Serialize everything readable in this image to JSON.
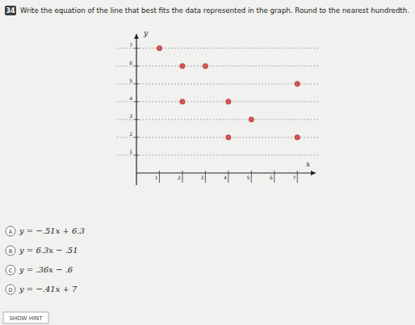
{
  "question_number": "34",
  "question": "Write the equation of the line that best fits the data represented in the graph. Round to the nearest hundredth.",
  "chart_data": {
    "type": "scatter",
    "x_label": "x",
    "y_label": "y",
    "x": [
      1,
      2,
      3,
      7,
      2,
      4,
      5,
      4,
      7
    ],
    "values": [
      7,
      6,
      6,
      5,
      4,
      4,
      3,
      2,
      2
    ],
    "color": "#d9534f",
    "marker": "circle",
    "xlim": [
      0,
      7.8
    ],
    "ylim": [
      0,
      7.8
    ],
    "xticks": [
      1,
      2,
      3,
      4,
      5,
      6,
      7
    ],
    "yticks": [
      1,
      2,
      3,
      4,
      5,
      6,
      7
    ],
    "grid": true
  },
  "choices": [
    {
      "letter": "A",
      "text": "y = −.51x + 6.3"
    },
    {
      "letter": "B",
      "text": "y = 6.3x − .51"
    },
    {
      "letter": "C",
      "text": "y = .36x − .6"
    },
    {
      "letter": "D",
      "text": "y = −.41x + 7"
    }
  ],
  "hint_button": "SHOW HINT"
}
